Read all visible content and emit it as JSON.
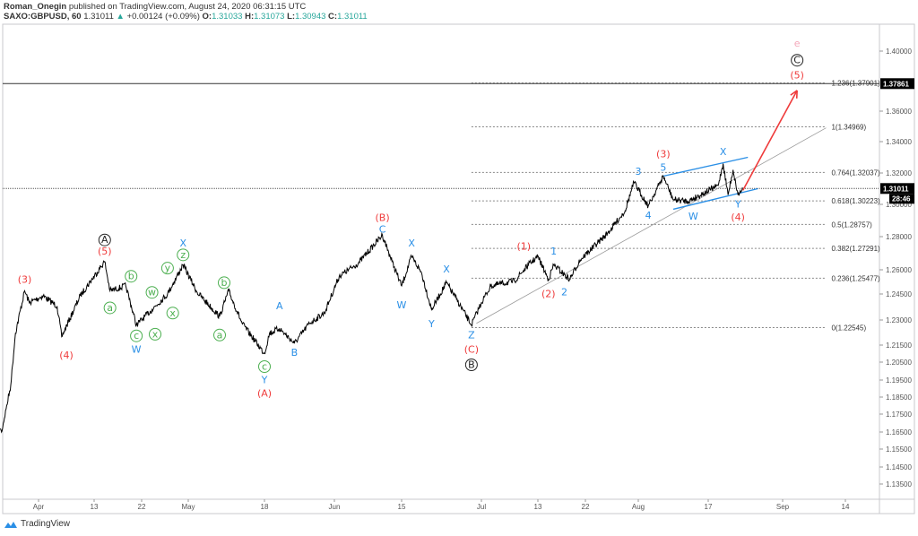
{
  "header": {
    "author": "Roman_Onegin",
    "published": "published on TradingView.com, August 24, 2020 06:31:15 UTC",
    "symbol": "SAXO:GBPUSD, 60",
    "last": "1.31011",
    "change": "+0.00124 (+0.09%)",
    "o_label": "O:",
    "o": "1.31033",
    "h_label": "H:",
    "h": "1.31073",
    "l_label": "L:",
    "l": "1.30943",
    "c_label": "C:",
    "c": "1.31011"
  },
  "logo": "TradingView",
  "colors": {
    "red": "#ef3b3b",
    "blue": "#2a8fe6",
    "green": "#4caf50",
    "pink": "#f4a7b9",
    "line": "#000000"
  },
  "chart_data": {
    "type": "line",
    "title": "",
    "x_ticks": [
      {
        "label": "Apr",
        "date": "2020-04-01"
      },
      {
        "label": "13",
        "date": "2020-04-13"
      },
      {
        "label": "22",
        "date": "2020-04-22"
      },
      {
        "label": "May",
        "date": "2020-05-01"
      },
      {
        "label": "18",
        "date": "2020-05-18"
      },
      {
        "label": "Jun",
        "date": "2020-06-01"
      },
      {
        "label": "15",
        "date": "2020-06-15"
      },
      {
        "label": "Jul",
        "date": "2020-07-01"
      },
      {
        "label": "13",
        "date": "2020-07-13"
      },
      {
        "label": "22",
        "date": "2020-07-22"
      },
      {
        "label": "Aug",
        "date": "2020-08-03"
      },
      {
        "label": "17",
        "date": "2020-08-17"
      },
      {
        "label": "Sep",
        "date": "2020-09-01"
      },
      {
        "label": "14",
        "date": "2020-09-14"
      }
    ],
    "y_ticks": [
      "1.40000",
      "1.36000",
      "1.34000",
      "1.32000",
      "1.30000",
      "1.28000",
      "1.26000",
      "1.24500",
      "1.23000",
      "1.21500",
      "1.20500",
      "1.19500",
      "1.18500",
      "1.17500",
      "1.16500",
      "1.15500",
      "1.14500",
      "1.13500"
    ],
    "price_label": "1.31011",
    "countdown": "28:46",
    "line_label": "1.37861",
    "line_price": 1.37861,
    "current_price": 1.31011,
    "series": [
      {
        "points": [
          [
            "2020-03-23",
            1.172
          ],
          [
            "2020-03-24",
            1.165
          ],
          [
            "2020-03-25",
            1.178
          ],
          [
            "2020-03-26",
            1.192
          ],
          [
            "2020-03-27",
            1.222
          ],
          [
            "2020-03-29",
            1.247
          ],
          [
            "2020-03-30",
            1.24
          ],
          [
            "2020-04-02",
            1.244
          ],
          [
            "2020-04-05",
            1.238
          ],
          [
            "2020-04-06",
            1.22
          ],
          [
            "2020-04-10",
            1.244
          ],
          [
            "2020-04-15",
            1.265
          ],
          [
            "2020-04-16",
            1.247
          ],
          [
            "2020-04-19",
            1.25
          ],
          [
            "2020-04-21",
            1.227
          ],
          [
            "2020-04-24",
            1.236
          ],
          [
            "2020-04-27",
            1.245
          ],
          [
            "2020-04-30",
            1.263
          ],
          [
            "2020-05-03",
            1.246
          ],
          [
            "2020-05-08",
            1.232
          ],
          [
            "2020-05-10",
            1.247
          ],
          [
            "2020-05-13",
            1.228
          ],
          [
            "2020-05-18",
            1.21
          ],
          [
            "2020-05-19",
            1.222
          ],
          [
            "2020-05-21",
            1.225
          ],
          [
            "2020-05-24",
            1.216
          ],
          [
            "2020-05-27",
            1.228
          ],
          [
            "2020-05-30",
            1.234
          ],
          [
            "2020-06-02",
            1.256
          ],
          [
            "2020-06-06",
            1.264
          ],
          [
            "2020-06-11",
            1.281
          ],
          [
            "2020-06-13",
            1.265
          ],
          [
            "2020-06-15",
            1.25
          ],
          [
            "2020-06-17",
            1.268
          ],
          [
            "2020-06-19",
            1.258
          ],
          [
            "2020-06-21",
            1.236
          ],
          [
            "2020-06-24",
            1.252
          ],
          [
            "2020-06-26",
            1.242
          ],
          [
            "2020-06-29",
            1.227
          ],
          [
            "2020-07-01",
            1.24
          ],
          [
            "2020-07-03",
            1.25
          ],
          [
            "2020-07-08",
            1.253
          ],
          [
            "2020-07-11",
            1.263
          ],
          [
            "2020-07-13",
            1.268
          ],
          [
            "2020-07-15",
            1.254
          ],
          [
            "2020-07-16",
            1.263
          ],
          [
            "2020-07-19",
            1.254
          ],
          [
            "2020-07-21",
            1.266
          ],
          [
            "2020-07-27",
            1.282
          ],
          [
            "2020-07-31",
            1.296
          ],
          [
            "2020-08-02",
            1.314
          ],
          [
            "2020-08-05",
            1.299
          ],
          [
            "2020-08-08",
            1.318
          ],
          [
            "2020-08-10",
            1.303
          ],
          [
            "2020-08-13",
            1.302
          ],
          [
            "2020-08-19",
            1.312
          ],
          [
            "2020-08-20",
            1.326
          ],
          [
            "2020-08-21",
            1.306
          ],
          [
            "2020-08-22",
            1.322
          ],
          [
            "2020-08-23",
            1.306
          ],
          [
            "2020-08-24",
            1.31011
          ]
        ]
      }
    ],
    "fibonacci": {
      "from_date": "2020-06-29",
      "to_date": "2020-09-10",
      "levels": [
        {
          "ratio": 0,
          "price": 1.22545,
          "label": "0(1.22545)"
        },
        {
          "ratio": 0.236,
          "price": 1.25477,
          "label": "0.236(1.25477)"
        },
        {
          "ratio": 0.382,
          "price": 1.27291,
          "label": "0.382(1.27291)"
        },
        {
          "ratio": 0.5,
          "price": 1.28757,
          "label": "0.5(1.28757)"
        },
        {
          "ratio": 0.618,
          "price": 1.30223,
          "label": "0.618(1.30223)"
        },
        {
          "ratio": 0.764,
          "price": 1.32037,
          "label": "0.764(1.32037)"
        },
        {
          "ratio": 1,
          "price": 1.34969,
          "label": "1(1.34969)"
        },
        {
          "ratio": 1.236,
          "price": 1.37901,
          "label": "1.236(1.37901)"
        }
      ]
    },
    "trend_lines": [
      {
        "kind": "gray",
        "from": [
          "2020-06-30",
          1.228
        ],
        "to": [
          "2020-09-10",
          1.349
        ]
      },
      {
        "kind": "blue",
        "from": [
          "2020-08-08",
          1.318
        ],
        "to": [
          "2020-08-25",
          1.33
        ]
      },
      {
        "kind": "blue",
        "from": [
          "2020-08-10",
          1.297
        ],
        "to": [
          "2020-08-27",
          1.31
        ]
      },
      {
        "kind": "red-arrow",
        "from": [
          "2020-08-24",
          1.309
        ],
        "to": [
          "2020-09-04",
          1.374
        ]
      }
    ],
    "wave_labels": [
      {
        "text": "(3)",
        "color": "red",
        "date": "2020-03-29",
        "price": 1.254
      },
      {
        "text": "(4)",
        "color": "red",
        "date": "2020-04-07",
        "price": 1.209
      },
      {
        "text": "A",
        "color": "black",
        "circled": true,
        "date": "2020-04-15",
        "price": 1.278
      },
      {
        "text": "(5)",
        "color": "red",
        "date": "2020-04-15",
        "price": 1.271
      },
      {
        "text": "a",
        "color": "green",
        "circled": true,
        "date": "2020-04-16",
        "price": 1.237
      },
      {
        "text": "b",
        "color": "green",
        "circled": true,
        "date": "2020-04-20",
        "price": 1.256
      },
      {
        "text": "c",
        "color": "green",
        "circled": true,
        "date": "2020-04-21",
        "price": 1.2205
      },
      {
        "text": "W",
        "color": "blue",
        "date": "2020-04-21",
        "price": 1.2125
      },
      {
        "text": "w",
        "color": "green",
        "circled": true,
        "date": "2020-04-24",
        "price": 1.246
      },
      {
        "text": "x",
        "color": "green",
        "circled": true,
        "date": "2020-04-24.6",
        "price": 1.2215
      },
      {
        "text": "y",
        "color": "green",
        "circled": true,
        "date": "2020-04-27",
        "price": 1.261
      },
      {
        "text": "x",
        "color": "green",
        "circled": true,
        "date": "2020-04-28",
        "price": 1.234
      },
      {
        "text": "X",
        "color": "blue",
        "date": "2020-04-30",
        "price": 1.276
      },
      {
        "text": "z",
        "color": "green",
        "circled": true,
        "date": "2020-04-30",
        "price": 1.269
      },
      {
        "text": "b",
        "color": "green",
        "circled": true,
        "date": "2020-05-09",
        "price": 1.252
      },
      {
        "text": "a",
        "color": "green",
        "circled": true,
        "date": "2020-05-08",
        "price": 1.221
      },
      {
        "text": "A",
        "color": "blue",
        "date": "2020-05-21",
        "price": 1.238
      },
      {
        "text": "B",
        "color": "blue",
        "date": "2020-05-24",
        "price": 1.2105
      },
      {
        "text": "c",
        "color": "green",
        "circled": true,
        "date": "2020-05-18",
        "price": 1.2025
      },
      {
        "text": "Y",
        "color": "blue",
        "date": "2020-05-18",
        "price": 1.195
      },
      {
        "text": "(A)",
        "color": "red",
        "date": "2020-05-18",
        "price": 1.187
      },
      {
        "text": "(B)",
        "color": "red",
        "date": "2020-06-11",
        "price": 1.2917
      },
      {
        "text": "C",
        "color": "blue",
        "date": "2020-06-11",
        "price": 1.2845
      },
      {
        "text": "X",
        "color": "blue",
        "date": "2020-06-17",
        "price": 1.276
      },
      {
        "text": "W",
        "color": "blue",
        "date": "2020-06-15",
        "price": 1.2385
      },
      {
        "text": "Y",
        "color": "blue",
        "date": "2020-06-21",
        "price": 1.2275
      },
      {
        "text": "X",
        "color": "blue",
        "date": "2020-06-24",
        "price": 1.2603
      },
      {
        "text": "Z",
        "color": "blue",
        "date": "2020-06-29",
        "price": 1.221
      },
      {
        "text": "(C)",
        "color": "red",
        "date": "2020-06-29",
        "price": 1.2125
      },
      {
        "text": "B",
        "color": "black",
        "circled": true,
        "date": "2020-06-29",
        "price": 1.2035
      },
      {
        "text": "(1)",
        "color": "red",
        "date": "2020-07-10",
        "price": 1.274
      },
      {
        "text": "1",
        "color": "blue",
        "date": "2020-07-16",
        "price": 1.271
      },
      {
        "text": "(2)",
        "color": "red",
        "date": "2020-07-15",
        "price": 1.245
      },
      {
        "text": "2",
        "color": "blue",
        "date": "2020-07-18",
        "price": 1.246
      },
      {
        "text": "3",
        "color": "blue",
        "date": "2020-08-03",
        "price": 1.321
      },
      {
        "text": "5",
        "color": "blue",
        "date": "2020-08-08",
        "price": 1.3235
      },
      {
        "text": "(3)",
        "color": "red",
        "date": "2020-08-08",
        "price": 1.332
      },
      {
        "text": "4",
        "color": "blue",
        "date": "2020-08-05",
        "price": 1.293
      },
      {
        "text": "W",
        "color": "blue",
        "date": "2020-08-14",
        "price": 1.2925
      },
      {
        "text": "X",
        "color": "blue",
        "date": "2020-08-20",
        "price": 1.3335
      },
      {
        "text": "Y",
        "color": "blue",
        "date": "2020-08-23",
        "price": 1.3
      },
      {
        "text": "(4)",
        "color": "red",
        "date": "2020-08-23",
        "price": 1.292
      },
      {
        "text": "e",
        "color": "pink",
        "date": "2020-09-04",
        "price": 1.405
      },
      {
        "text": "C",
        "color": "black",
        "circled": true,
        "date": "2020-09-04",
        "price": 1.394
      },
      {
        "text": "(5)",
        "color": "red",
        "date": "2020-09-04",
        "price": 1.384
      }
    ]
  }
}
